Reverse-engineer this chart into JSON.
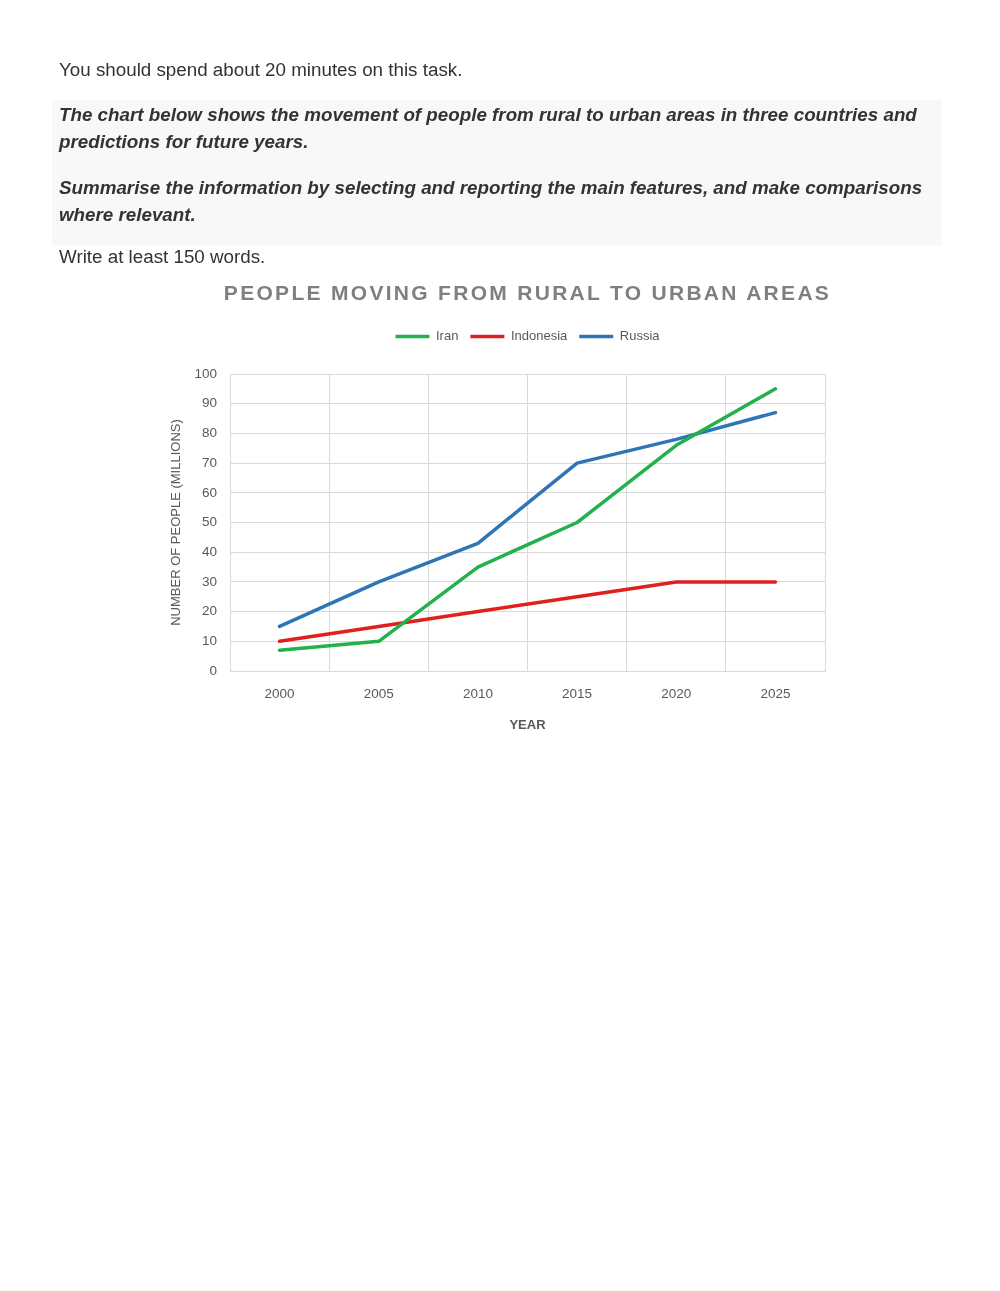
{
  "chart_data": {
    "type": "line",
    "title": "PEOPLE MOVING FROM RURAL TO URBAN AREAS",
    "xlabel": "YEAR",
    "ylabel": "NUMBER OF PEOPLE (MILLIONS)",
    "annotations": [
      "You should spend about 20 minutes on this task.",
      "The chart below shows the movement of people from rural to urban areas in three countries and predictions for future years.",
      "Summarise the information by selecting and reporting the main features, and make comparisons where relevant.",
      "Write at least 150 words."
    ],
    "categories": [
      "2000",
      "2005",
      "2010",
      "2015",
      "2020",
      "2025"
    ],
    "series": [
      {
        "name": "Iran",
        "color": "#22b14c",
        "values": [
          7,
          10,
          35,
          50,
          76,
          95
        ]
      },
      {
        "name": "Indonesia",
        "color": "#e0201c",
        "values": [
          10,
          15,
          20,
          25,
          30,
          30
        ]
      },
      {
        "name": "Russia",
        "color": "#2e75b6",
        "values": [
          15,
          30,
          43,
          70,
          78,
          87
        ]
      }
    ],
    "ylim": [
      0,
      100
    ],
    "yticks": [
      0,
      10,
      20,
      30,
      40,
      50,
      60,
      70,
      80,
      90,
      100
    ],
    "grid": true,
    "legend": "top",
    "marker": "none",
    "line_style": "solid"
  }
}
